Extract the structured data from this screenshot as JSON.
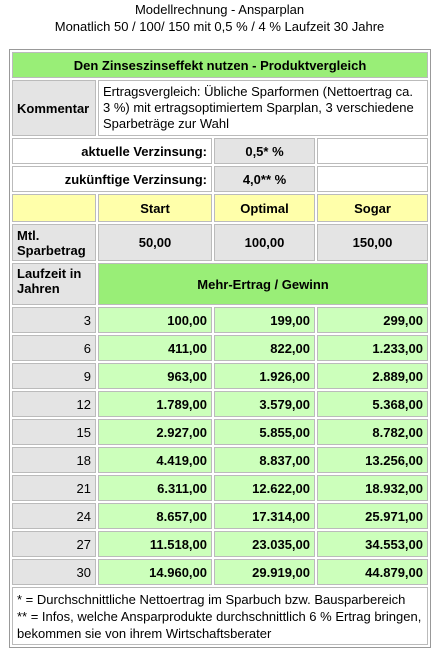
{
  "header": {
    "title": "Modellrechnung - Ansparplan",
    "subtitle": "Monatlich 50 / 100/ 150 mit 0,5 % / 4 % Laufzeit 30 Jahre"
  },
  "table": {
    "title": "Den Zinseszinseffekt nutzen - Produktvergleich",
    "comment_label": "Kommentar",
    "comment": "Ertragsvergleich: Übliche Sparformen (Nettoertrag ca. 3 %) mit ertragsoptimiertem Sparplan, 3 verschiedene Sparbeträge zur Wahl",
    "rate_current": {
      "label": "aktuelle Verzinsung:",
      "value": "0,5* %"
    },
    "rate_future": {
      "label": "zukünftige Verzinsung:",
      "value": "4,0** %"
    },
    "columns": [
      "Start",
      "Optimal",
      "Sogar"
    ],
    "savings_label": "Mtl. Sparbetrag",
    "savings": [
      "50,00",
      "100,00",
      "150,00"
    ],
    "years_label": "Laufzeit in Jahren",
    "result_label": "Mehr-Ertrag / Gewinn",
    "rows": [
      [
        "3",
        "100,00",
        "199,00",
        "299,00"
      ],
      [
        "6",
        "411,00",
        "822,00",
        "1.233,00"
      ],
      [
        "9",
        "963,00",
        "1.926,00",
        "2.889,00"
      ],
      [
        "12",
        "1.789,00",
        "3.579,00",
        "5.368,00"
      ],
      [
        "15",
        "2.927,00",
        "5.855,00",
        "8.782,00"
      ],
      [
        "18",
        "4.419,00",
        "8.837,00",
        "13.256,00"
      ],
      [
        "21",
        "6.311,00",
        "12.622,00",
        "18.932,00"
      ],
      [
        "24",
        "8.657,00",
        "17.314,00",
        "25.971,00"
      ],
      [
        "27",
        "11.518,00",
        "23.035,00",
        "34.553,00"
      ],
      [
        "30",
        "14.960,00",
        "29.919,00",
        "44.879,00"
      ]
    ]
  },
  "footnotes": [
    "* = Durchschnittliche Nettoertrag im Sparbuch bzw. Bausparbereich",
    "** = Infos, welche Ansparprodukte durchschnittlich 6 % Ertrag bringen, bekommen sie von ihrem Wirtschaftsberater"
  ]
}
